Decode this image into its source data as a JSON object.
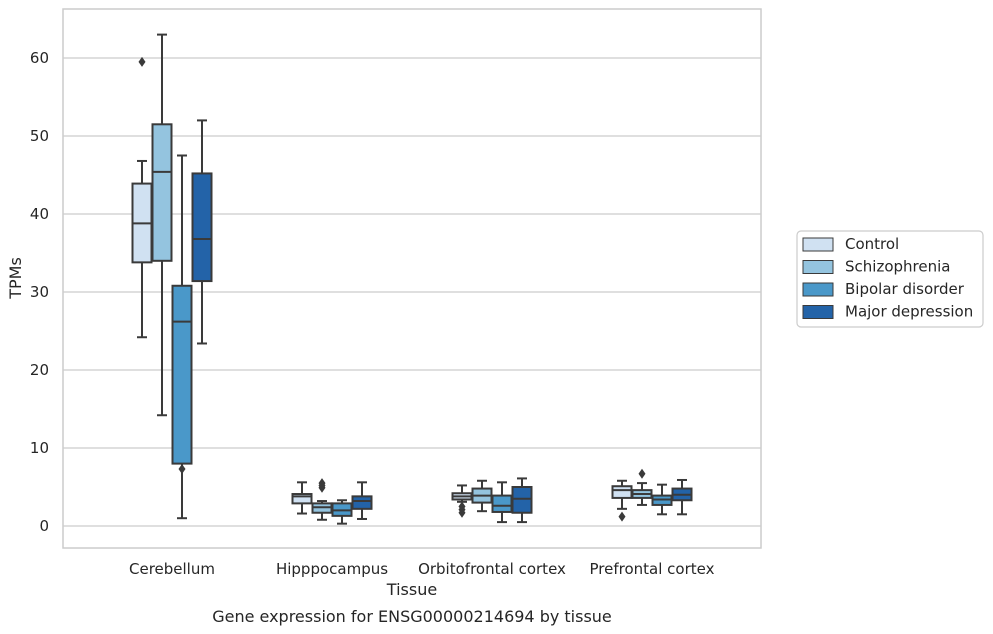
{
  "chart_data": {
    "type": "box",
    "title": "",
    "caption": "Gene expression for ENSG00000214694 by tissue",
    "xlabel": "Tissue",
    "ylabel": "TPMs",
    "ylim": [
      -2.8,
      65
    ],
    "yticks": [
      0,
      10,
      20,
      30,
      40,
      50,
      60
    ],
    "grid": "horizontal",
    "legend_placement": "right",
    "categories": [
      "Cerebellum",
      "Hipppocampus",
      "Orbitofrontal cortex",
      "Prefrontal cortex"
    ],
    "series": [
      {
        "name": "Control",
        "color": "#d0e1f2",
        "boxes": [
          {
            "min": 24.2,
            "q1": 33.8,
            "median": 38.8,
            "q3": 43.9,
            "max": 46.8,
            "outliers": [
              59.5
            ]
          },
          {
            "min": 1.6,
            "q1": 2.9,
            "median": 3.8,
            "q3": 4.1,
            "max": 5.6,
            "outliers": []
          },
          {
            "min": 3.1,
            "q1": 3.4,
            "median": 3.8,
            "q3": 4.2,
            "max": 5.2,
            "outliers": [
              1.7,
              2.1,
              2.5
            ]
          },
          {
            "min": 2.2,
            "q1": 3.6,
            "median": 4.6,
            "q3": 5.1,
            "max": 5.8,
            "outliers": [
              1.2
            ]
          }
        ]
      },
      {
        "name": "Schizophrenia",
        "color": "#94c4df",
        "boxes": [
          {
            "min": 14.2,
            "q1": 34.0,
            "median": 45.4,
            "q3": 51.5,
            "max": 63.0,
            "outliers": []
          },
          {
            "min": 0.8,
            "q1": 1.7,
            "median": 2.4,
            "q3": 2.9,
            "max": 3.2,
            "outliers": [
              4.9,
              5.2,
              5.5
            ]
          },
          {
            "min": 1.9,
            "q1": 3.0,
            "median": 3.9,
            "q3": 4.8,
            "max": 5.8,
            "outliers": []
          },
          {
            "min": 2.7,
            "q1": 3.6,
            "median": 4.1,
            "q3": 4.6,
            "max": 5.5,
            "outliers": [
              6.7
            ]
          }
        ]
      },
      {
        "name": "Bipolar disorder",
        "color": "#4a98c9",
        "boxes": [
          {
            "min": 1.0,
            "q1": 8.0,
            "median": 26.2,
            "q3": 30.8,
            "max": 47.5,
            "outliers": [
              7.3
            ]
          },
          {
            "min": 0.3,
            "q1": 1.3,
            "median": 2.0,
            "q3": 2.9,
            "max": 3.3,
            "outliers": []
          },
          {
            "min": 0.5,
            "q1": 1.8,
            "median": 2.6,
            "q3": 3.9,
            "max": 5.6,
            "outliers": []
          },
          {
            "min": 1.5,
            "q1": 2.7,
            "median": 3.4,
            "q3": 3.9,
            "max": 5.3,
            "outliers": []
          }
        ]
      },
      {
        "name": "Major depression",
        "color": "#2363a8",
        "boxes": [
          {
            "min": 23.4,
            "q1": 31.4,
            "median": 36.8,
            "q3": 45.2,
            "max": 52.0,
            "outliers": []
          },
          {
            "min": 0.9,
            "q1": 2.2,
            "median": 3.2,
            "q3": 3.8,
            "max": 5.6,
            "outliers": []
          },
          {
            "min": 0.5,
            "q1": 1.7,
            "median": 3.5,
            "q3": 5.0,
            "max": 6.1,
            "outliers": []
          },
          {
            "min": 1.5,
            "q1": 3.3,
            "median": 4.0,
            "q3": 4.8,
            "max": 5.9,
            "outliers": []
          }
        ]
      }
    ]
  }
}
